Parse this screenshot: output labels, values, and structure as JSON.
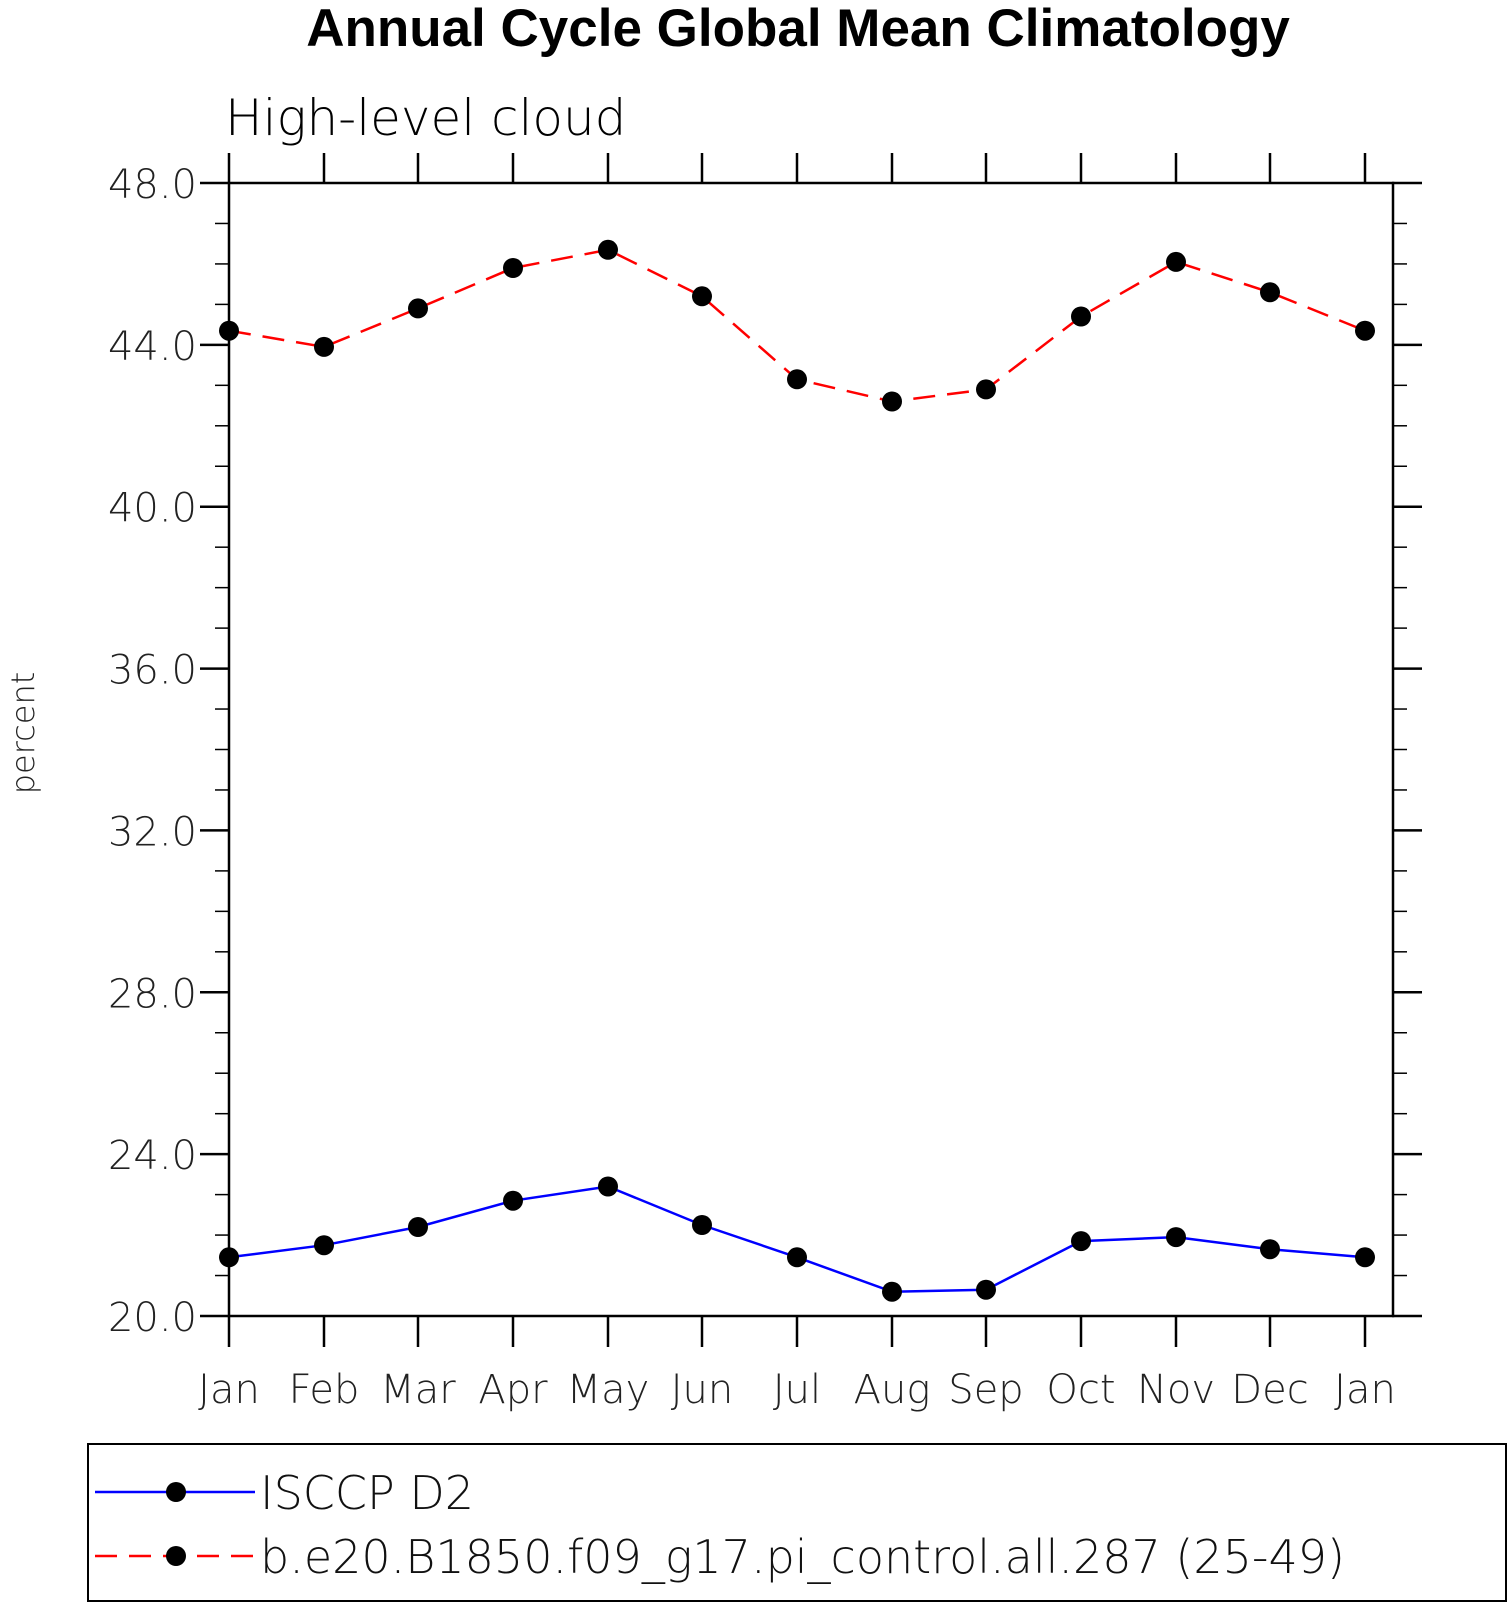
{
  "chart_data": {
    "type": "line",
    "title": "Annual Cycle Global Mean Climatology",
    "subtitle": "High-level cloud",
    "xlabel": "",
    "ylabel": "percent",
    "categories": [
      "Jan",
      "Feb",
      "Mar",
      "Apr",
      "May",
      "Jun",
      "Jul",
      "Aug",
      "Sep",
      "Oct",
      "Nov",
      "Dec",
      "Jan"
    ],
    "ylim": [
      20.0,
      48.0
    ],
    "yticks": [
      "20.0",
      "24.0",
      "28.0",
      "32.0",
      "36.0",
      "40.0",
      "44.0",
      "48.0"
    ],
    "grid": false,
    "legend_position": "bottom",
    "series": [
      {
        "name": "ISCCP D2",
        "color": "#0000ff",
        "line_style": "solid",
        "marker": "filled-circle",
        "values": [
          21.45,
          21.75,
          22.2,
          22.85,
          23.2,
          22.25,
          21.45,
          20.6,
          20.65,
          21.85,
          21.95,
          21.65,
          21.45
        ]
      },
      {
        "name": "b.e20.B1850.f09_g17.pi_control.all.287 (25-49)",
        "color": "#ff0000",
        "line_style": "dashed",
        "marker": "filled-circle",
        "values": [
          44.35,
          43.95,
          44.9,
          45.9,
          46.35,
          45.2,
          43.15,
          42.6,
          42.9,
          44.7,
          46.05,
          45.3,
          44.35
        ]
      }
    ]
  }
}
